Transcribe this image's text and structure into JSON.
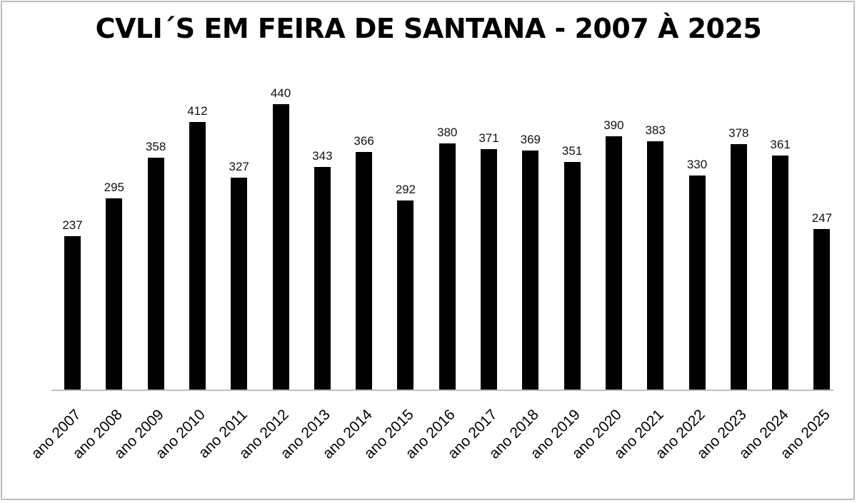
{
  "chart_data": {
    "type": "bar",
    "title": "CVLI´S EM FEIRA DE SANTANA - 2007 À 2025",
    "xlabel": "",
    "ylabel": "",
    "categories": [
      "ano 2007",
      "ano 2008",
      "ano 2009",
      "ano 2010",
      "ano 2011",
      "ano 2012",
      "ano 2013",
      "ano 2014",
      "ano 2015",
      "ano 2016",
      "ano 2017",
      "ano 2018",
      "ano 2019",
      "ano 2020",
      "ano 2021",
      "ano 2022",
      "ano 2023",
      "ano 2024",
      "ano 2025"
    ],
    "values": [
      237,
      295,
      358,
      412,
      327,
      440,
      343,
      366,
      292,
      380,
      371,
      369,
      351,
      390,
      383,
      330,
      378,
      361,
      247
    ],
    "value_labels": [
      "237",
      "295",
      "358",
      "412",
      "327",
      "440",
      "343",
      "366",
      "292",
      "380",
      "371",
      "369",
      "351",
      "390",
      "383",
      "330",
      "378",
      "361",
      "247"
    ],
    "ylim": [
      0,
      440
    ],
    "grid": false,
    "legend": "none",
    "data_labels": true,
    "bar_color": "#000000",
    "xtick_rotation": -45
  }
}
